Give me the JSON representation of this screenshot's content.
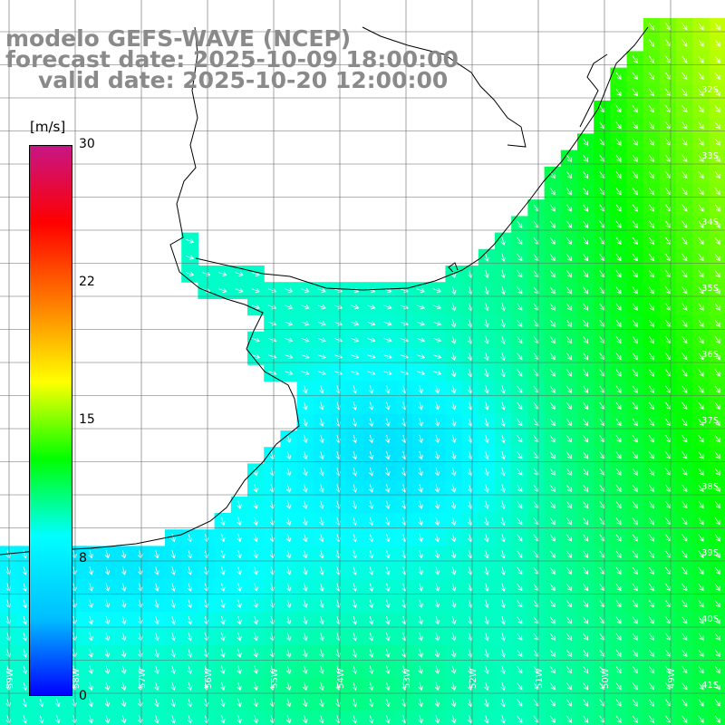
{
  "title": {
    "model": "modelo GEFS-WAVE (NCEP)",
    "forecast": "forecast date: 2025-10-09 18:00:00",
    "valid": "valid date: 2025-10-20 12:00:00"
  },
  "colorbar": {
    "unit": "[m/s]",
    "ticks": [
      "30",
      "22",
      "15",
      "8",
      "0"
    ],
    "min": 0,
    "max": 30,
    "colors": [
      "#0000ff",
      "#00bfff",
      "#00ffff",
      "#00ff00",
      "#ffff00",
      "#ff8000",
      "#ff0000",
      "#c71585"
    ]
  },
  "map": {
    "lat_labels": [
      "32S",
      "33S",
      "34S",
      "35S",
      "36S",
      "37S",
      "38S",
      "39S",
      "40S",
      "41S"
    ],
    "lon_labels": [
      "59W",
      "58W",
      "57W",
      "56W",
      "55W",
      "54W",
      "53W",
      "52W",
      "51W",
      "50W",
      "49W"
    ],
    "land_color": "#ffffff",
    "arrow_color": "#ffffff"
  }
}
